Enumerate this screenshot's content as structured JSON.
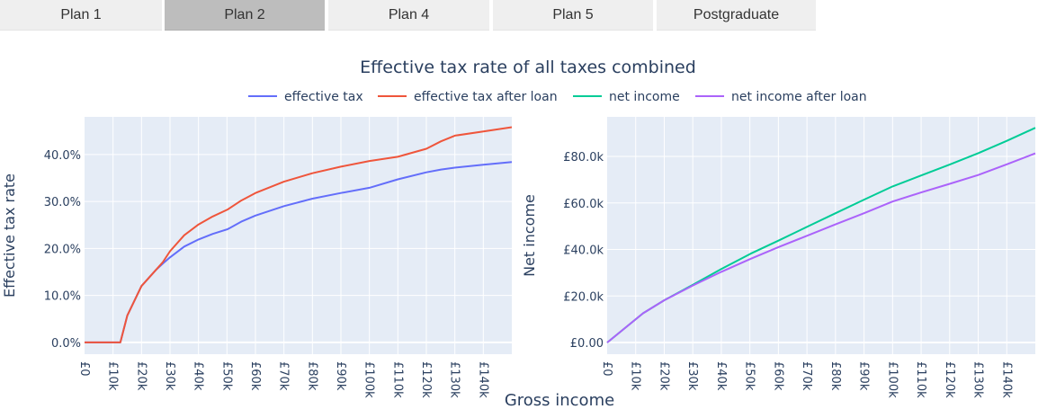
{
  "tabs": [
    {
      "label": "Plan 1",
      "active": false
    },
    {
      "label": "Plan 2",
      "active": true
    },
    {
      "label": "Plan 4",
      "active": false
    },
    {
      "label": "Plan 5",
      "active": false
    },
    {
      "label": "Postgraduate",
      "active": false
    }
  ],
  "figure": {
    "title": "Effective tax rate of all taxes combined",
    "xlabel": "Gross income",
    "legend_placement": "top-center"
  },
  "chart_data": [
    {
      "type": "line",
      "ylabel": "Effective tax rate",
      "xlim": [
        0,
        150000
      ],
      "ylim": [
        -0.025,
        0.48
      ],
      "x_ticks": [
        "£0",
        "£10k",
        "£20k",
        "£30k",
        "£40k",
        "£50k",
        "£60k",
        "£70k",
        "£80k",
        "£90k",
        "£100k",
        "£110k",
        "£120k",
        "£130k",
        "£140k"
      ],
      "y_ticks": [
        "0.0%",
        "10.0%",
        "20.0%",
        "30.0%",
        "40.0%"
      ],
      "y_tick_values": [
        0,
        0.1,
        0.2,
        0.3,
        0.4
      ],
      "grid": true,
      "series": [
        {
          "name": "effective tax",
          "color": "#636efa",
          "x": [
            0,
            12570,
            15000,
            20000,
            25000,
            27500,
            30000,
            35000,
            40000,
            45000,
            50270,
            55000,
            60000,
            70000,
            80000,
            90000,
            100000,
            110000,
            120000,
            125140,
            130000,
            140000,
            150000
          ],
          "y": [
            0,
            0,
            0.057,
            0.12,
            0.154,
            0.168,
            0.181,
            0.204,
            0.219,
            0.231,
            0.241,
            0.257,
            0.27,
            0.29,
            0.306,
            0.318,
            0.329,
            0.347,
            0.362,
            0.368,
            0.372,
            0.378,
            0.384
          ]
        },
        {
          "name": "effective tax after loan",
          "color": "#ef553b",
          "x": [
            0,
            12570,
            15000,
            20000,
            25000,
            27500,
            30000,
            35000,
            40000,
            45000,
            50270,
            55000,
            60000,
            70000,
            80000,
            90000,
            100000,
            110000,
            120000,
            125140,
            130000,
            140000,
            150000
          ],
          "y": [
            0,
            0,
            0.057,
            0.12,
            0.154,
            0.171,
            0.194,
            0.228,
            0.251,
            0.268,
            0.283,
            0.302,
            0.318,
            0.342,
            0.36,
            0.374,
            0.386,
            0.395,
            0.412,
            0.428,
            0.44,
            0.449,
            0.458
          ]
        }
      ]
    },
    {
      "type": "line",
      "ylabel": "Net income",
      "xlim": [
        0,
        150000
      ],
      "ylim": [
        -5000,
        97000
      ],
      "x_ticks": [
        "£0",
        "£10k",
        "£20k",
        "£30k",
        "£40k",
        "£50k",
        "£60k",
        "£70k",
        "£80k",
        "£90k",
        "£100k",
        "£110k",
        "£120k",
        "£130k",
        "£140k"
      ],
      "y_ticks": [
        "£0.00",
        "£20.0k",
        "£40.0k",
        "£60.0k",
        "£80.0k"
      ],
      "y_tick_values": [
        0,
        20000,
        40000,
        60000,
        80000
      ],
      "grid": true,
      "series": [
        {
          "name": "net income",
          "color": "#00cc96",
          "x": [
            0,
            12570,
            20000,
            30000,
            40000,
            50270,
            60000,
            70000,
            80000,
            90000,
            100000,
            110000,
            120000,
            130000,
            140000,
            150000
          ],
          "y": [
            0,
            12570,
            18200,
            24800,
            31600,
            38200,
            43800,
            49700,
            55600,
            61400,
            67100,
            71800,
            76500,
            81400,
            86700,
            92300
          ]
        },
        {
          "name": "net income after loan",
          "color": "#ab63fa",
          "x": [
            0,
            12570,
            20000,
            30000,
            40000,
            50270,
            60000,
            70000,
            80000,
            90000,
            100000,
            110000,
            120000,
            130000,
            140000,
            150000
          ],
          "y": [
            0,
            12570,
            18200,
            24500,
            30400,
            36000,
            41000,
            45900,
            50800,
            55600,
            60600,
            64500,
            68200,
            72000,
            76600,
            81300
          ]
        }
      ]
    }
  ]
}
